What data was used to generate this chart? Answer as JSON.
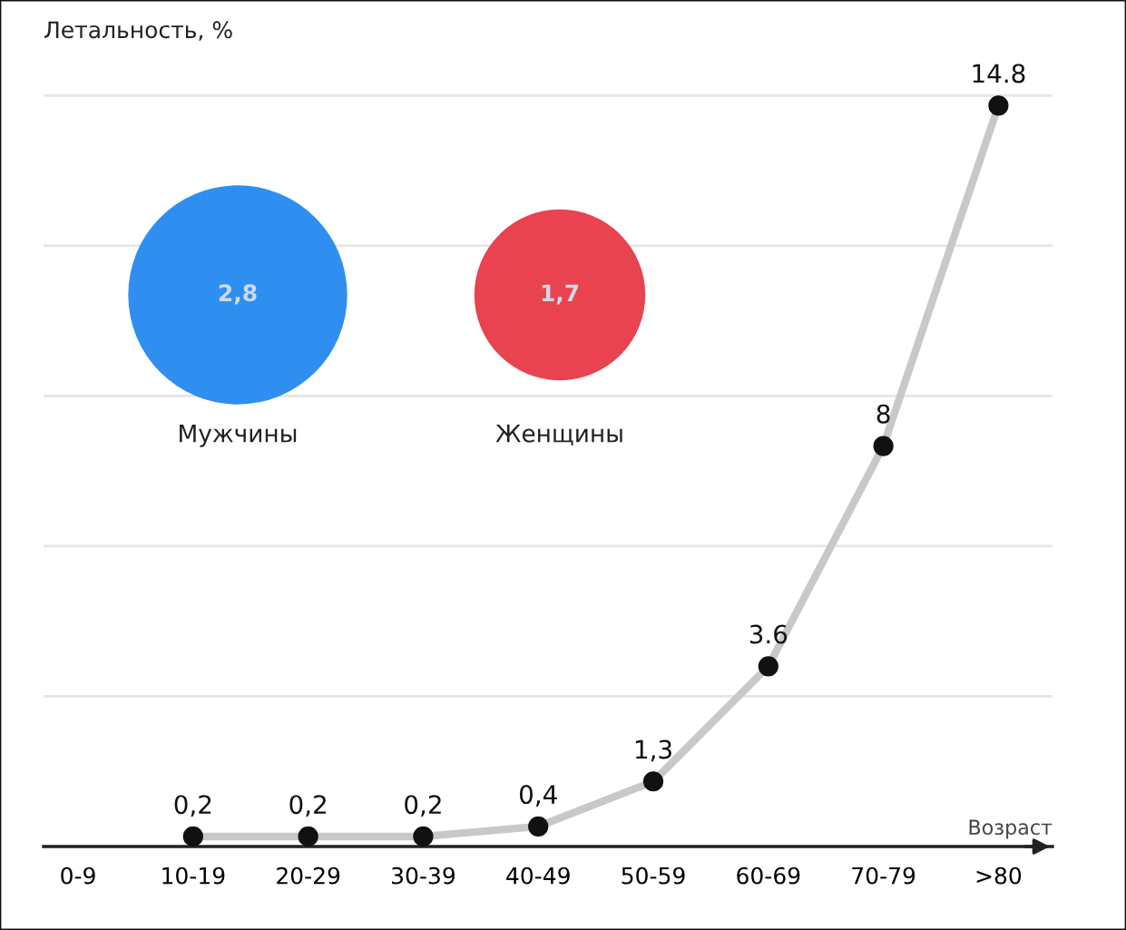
{
  "chart_data": [
    {
      "type": "line",
      "ylabel": "Летальность, %",
      "xlabel": "Возраст",
      "categories": [
        "0-9",
        "10-19",
        "20-29",
        "30-39",
        "40-49",
        "50-59",
        "60-69",
        "70-79",
        ">80"
      ],
      "series": [
        {
          "color": "#c8c8c8",
          "values": [
            null,
            0.2,
            0.2,
            0.2,
            0.4,
            1.3,
            3.6,
            8,
            14.8
          ],
          "value_labels": [
            null,
            "0,2",
            "0,2",
            "0,2",
            "0,4",
            "1,3",
            "3.6",
            "8",
            "14.8"
          ]
        }
      ],
      "yticks": [
        {
          "value": 3,
          "label": null
        },
        {
          "value": 6,
          "label": null
        },
        {
          "value": 9,
          "label": null
        },
        {
          "value": 12,
          "label": null
        },
        {
          "value": 15,
          "label": null
        }
      ],
      "grid": "y",
      "marker": "circle",
      "tick_labels": "x"
    },
    {
      "type": "other",
      "categories": [
        "Мужчины",
        "Женщины"
      ],
      "values": [
        2.8,
        1.7
      ],
      "value_labels": [
        "2,8",
        "1,7"
      ],
      "colors": [
        "#2f8ff0",
        "#e8434f"
      ]
    }
  ]
}
